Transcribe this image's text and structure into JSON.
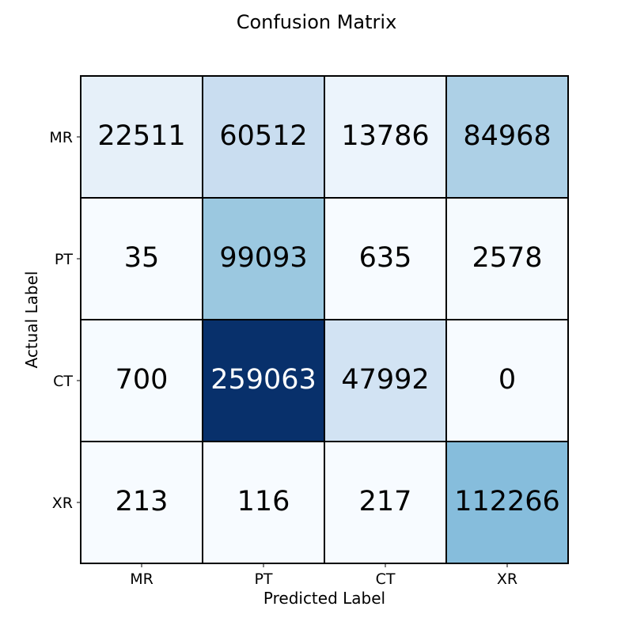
{
  "chart_data": {
    "type": "heatmap",
    "title": "Confusion Matrix",
    "xlabel": "Predicted Label",
    "ylabel": "Actual Label",
    "x_categories": [
      "MR",
      "PT",
      "CT",
      "XR"
    ],
    "y_categories": [
      "MR",
      "PT",
      "CT",
      "XR"
    ],
    "matrix": [
      [
        22511,
        60512,
        13786,
        84968
      ],
      [
        35,
        99093,
        635,
        2578
      ],
      [
        700,
        259063,
        47992,
        0
      ],
      [
        213,
        116,
        217,
        112266
      ]
    ],
    "colormap": "Blues",
    "colorscale_range": [
      0,
      259063
    ],
    "grid": true,
    "cell_border_color": "#000000"
  }
}
